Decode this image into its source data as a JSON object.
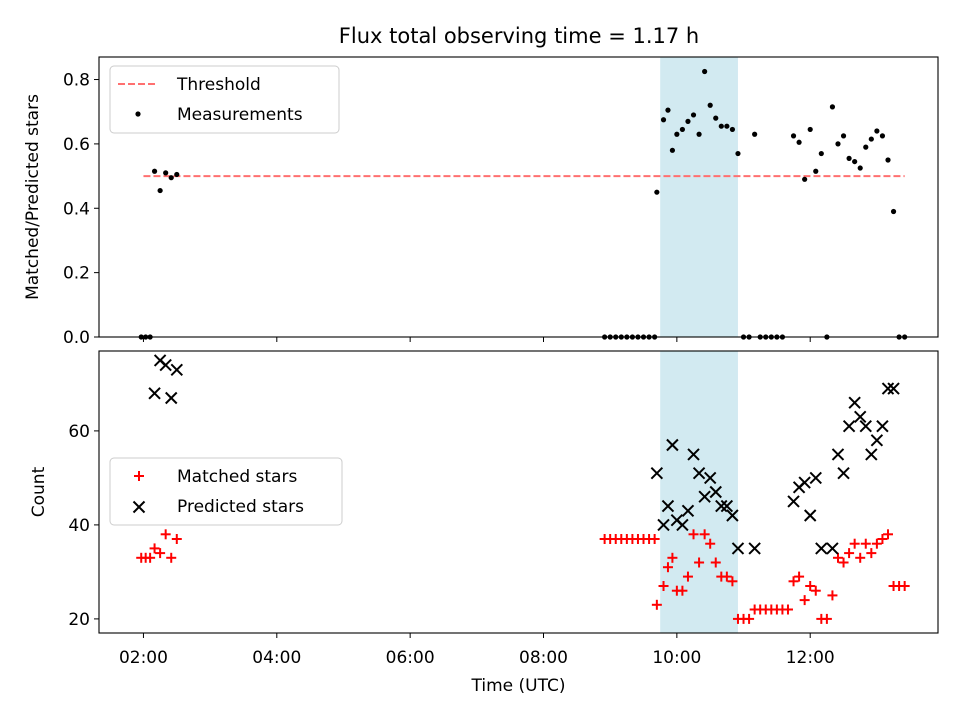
{
  "figure": {
    "title": "Flux total observing time = 1.17 h",
    "shade_color": "#add8e6",
    "shade_span": [
      "09:45",
      "10:55"
    ]
  },
  "chart_data": [
    {
      "type": "scatter",
      "panel": "top",
      "title": "Flux total observing time = 1.17 h",
      "xlabel": "",
      "ylabel": "Matched/Predicted stars",
      "xlim": [
        "01:20",
        "13:55"
      ],
      "ylim": [
        0,
        0.87
      ],
      "yticks": [
        0.0,
        0.2,
        0.4,
        0.6,
        0.8
      ],
      "ytick_labels": [
        "0.0",
        "0.2",
        "0.4",
        "0.6",
        "0.8"
      ],
      "legend": {
        "placement": "upper-left",
        "entries": [
          "Threshold",
          "Measurements"
        ]
      },
      "series": [
        {
          "name": "Threshold",
          "kind": "line",
          "style": "dashed",
          "color": "#ff7070",
          "points": [
            [
              "02:00",
              0.5
            ],
            [
              "13:25",
              0.5
            ]
          ]
        },
        {
          "name": "Measurements",
          "kind": "scatter",
          "marker": "dot",
          "color": "#000000",
          "points": [
            [
              "01:58",
              0.0
            ],
            [
              "02:02",
              0.0
            ],
            [
              "02:06",
              0.0
            ],
            [
              "02:10",
              0.515
            ],
            [
              "02:15",
              0.455
            ],
            [
              "02:20",
              0.51
            ],
            [
              "02:25",
              0.495
            ],
            [
              "02:30",
              0.505
            ],
            [
              "08:55",
              0.0
            ],
            [
              "09:00",
              0.0
            ],
            [
              "09:05",
              0.0
            ],
            [
              "09:10",
              0.0
            ],
            [
              "09:15",
              0.0
            ],
            [
              "09:20",
              0.0
            ],
            [
              "09:25",
              0.0
            ],
            [
              "09:30",
              0.0
            ],
            [
              "09:35",
              0.0
            ],
            [
              "09:40",
              0.0
            ],
            [
              "09:42",
              0.45
            ],
            [
              "09:48",
              0.675
            ],
            [
              "09:52",
              0.705
            ],
            [
              "09:56",
              0.58
            ],
            [
              "10:00",
              0.63
            ],
            [
              "10:05",
              0.645
            ],
            [
              "10:10",
              0.67
            ],
            [
              "10:15",
              0.69
            ],
            [
              "10:20",
              0.63
            ],
            [
              "10:25",
              0.825
            ],
            [
              "10:30",
              0.72
            ],
            [
              "10:35",
              0.68
            ],
            [
              "10:40",
              0.655
            ],
            [
              "10:45",
              0.655
            ],
            [
              "10:50",
              0.645
            ],
            [
              "10:55",
              0.57
            ],
            [
              "11:00",
              0.0
            ],
            [
              "11:05",
              0.0
            ],
            [
              "11:10",
              0.63
            ],
            [
              "11:15",
              0.0
            ],
            [
              "11:20",
              0.0
            ],
            [
              "11:25",
              0.0
            ],
            [
              "11:30",
              0.0
            ],
            [
              "11:35",
              0.0
            ],
            [
              "11:45",
              0.625
            ],
            [
              "11:50",
              0.605
            ],
            [
              "11:55",
              0.49
            ],
            [
              "12:00",
              0.645
            ],
            [
              "12:05",
              0.515
            ],
            [
              "12:10",
              0.57
            ],
            [
              "12:15",
              0.0
            ],
            [
              "12:20",
              0.715
            ],
            [
              "12:25",
              0.6
            ],
            [
              "12:30",
              0.625
            ],
            [
              "12:35",
              0.555
            ],
            [
              "12:40",
              0.545
            ],
            [
              "12:45",
              0.525
            ],
            [
              "12:50",
              0.59
            ],
            [
              "12:55",
              0.615
            ],
            [
              "13:00",
              0.64
            ],
            [
              "13:05",
              0.625
            ],
            [
              "13:10",
              0.55
            ],
            [
              "13:15",
              0.39
            ],
            [
              "13:20",
              0.0
            ],
            [
              "13:25",
              0.0
            ]
          ]
        }
      ]
    },
    {
      "type": "scatter",
      "panel": "bottom",
      "xlabel": "Time (UTC)",
      "ylabel": "Count",
      "xlim": [
        "01:20",
        "13:55"
      ],
      "ylim": [
        17,
        77
      ],
      "yticks": [
        20,
        40,
        60
      ],
      "ytick_labels": [
        "20",
        "40",
        "60"
      ],
      "xticks": [
        "02:00",
        "04:00",
        "06:00",
        "08:00",
        "10:00",
        "12:00"
      ],
      "legend": {
        "placement": "center-left",
        "entries": [
          "Matched stars",
          "Predicted stars"
        ]
      },
      "series": [
        {
          "name": "Matched stars",
          "kind": "scatter",
          "marker": "plus",
          "color": "#ff0000",
          "points": [
            [
              "01:58",
              33
            ],
            [
              "02:02",
              33
            ],
            [
              "02:06",
              33
            ],
            [
              "02:10",
              35
            ],
            [
              "02:15",
              34
            ],
            [
              "02:20",
              38
            ],
            [
              "02:25",
              33
            ],
            [
              "02:30",
              37
            ],
            [
              "08:55",
              37
            ],
            [
              "09:00",
              37
            ],
            [
              "09:05",
              37
            ],
            [
              "09:10",
              37
            ],
            [
              "09:15",
              37
            ],
            [
              "09:20",
              37
            ],
            [
              "09:25",
              37
            ],
            [
              "09:30",
              37
            ],
            [
              "09:35",
              37
            ],
            [
              "09:40",
              37
            ],
            [
              "09:42",
              23
            ],
            [
              "09:48",
              27
            ],
            [
              "09:52",
              31
            ],
            [
              "09:56",
              33
            ],
            [
              "10:00",
              26
            ],
            [
              "10:05",
              26
            ],
            [
              "10:10",
              29
            ],
            [
              "10:15",
              38
            ],
            [
              "10:20",
              32
            ],
            [
              "10:25",
              38
            ],
            [
              "10:30",
              36
            ],
            [
              "10:35",
              32
            ],
            [
              "10:40",
              29
            ],
            [
              "10:45",
              29
            ],
            [
              "10:50",
              28
            ],
            [
              "10:55",
              20
            ],
            [
              "11:00",
              20
            ],
            [
              "11:05",
              20
            ],
            [
              "11:10",
              22
            ],
            [
              "11:15",
              22
            ],
            [
              "11:20",
              22
            ],
            [
              "11:25",
              22
            ],
            [
              "11:30",
              22
            ],
            [
              "11:35",
              22
            ],
            [
              "11:40",
              22
            ],
            [
              "11:45",
              28
            ],
            [
              "11:50",
              29
            ],
            [
              "11:55",
              24
            ],
            [
              "12:00",
              27
            ],
            [
              "12:05",
              26
            ],
            [
              "12:10",
              20
            ],
            [
              "12:15",
              20
            ],
            [
              "12:20",
              25
            ],
            [
              "12:25",
              33
            ],
            [
              "12:30",
              32
            ],
            [
              "12:35",
              34
            ],
            [
              "12:40",
              36
            ],
            [
              "12:45",
              33
            ],
            [
              "12:50",
              36
            ],
            [
              "12:55",
              34
            ],
            [
              "13:00",
              36
            ],
            [
              "13:05",
              37
            ],
            [
              "13:10",
              38
            ],
            [
              "13:15",
              27
            ],
            [
              "13:20",
              27
            ],
            [
              "13:25",
              27
            ]
          ]
        },
        {
          "name": "Predicted stars",
          "kind": "scatter",
          "marker": "x",
          "color": "#000000",
          "points": [
            [
              "02:10",
              68
            ],
            [
              "02:15",
              75
            ],
            [
              "02:20",
              74
            ],
            [
              "02:25",
              67
            ],
            [
              "02:30",
              73
            ],
            [
              "09:42",
              51
            ],
            [
              "09:48",
              40
            ],
            [
              "09:52",
              44
            ],
            [
              "09:56",
              57
            ],
            [
              "10:00",
              41
            ],
            [
              "10:05",
              40
            ],
            [
              "10:10",
              43
            ],
            [
              "10:15",
              55
            ],
            [
              "10:20",
              51
            ],
            [
              "10:25",
              46
            ],
            [
              "10:30",
              50
            ],
            [
              "10:35",
              47
            ],
            [
              "10:40",
              44
            ],
            [
              "10:45",
              44
            ],
            [
              "10:50",
              42
            ],
            [
              "10:55",
              35
            ],
            [
              "11:10",
              35
            ],
            [
              "11:45",
              45
            ],
            [
              "11:50",
              48
            ],
            [
              "11:55",
              49
            ],
            [
              "12:00",
              42
            ],
            [
              "12:05",
              50
            ],
            [
              "12:10",
              35
            ],
            [
              "12:20",
              35
            ],
            [
              "12:25",
              55
            ],
            [
              "12:30",
              51
            ],
            [
              "12:35",
              61
            ],
            [
              "12:40",
              66
            ],
            [
              "12:45",
              63
            ],
            [
              "12:50",
              61
            ],
            [
              "12:55",
              55
            ],
            [
              "13:00",
              58
            ],
            [
              "13:05",
              61
            ],
            [
              "13:10",
              69
            ],
            [
              "13:15",
              69
            ]
          ]
        }
      ]
    }
  ]
}
